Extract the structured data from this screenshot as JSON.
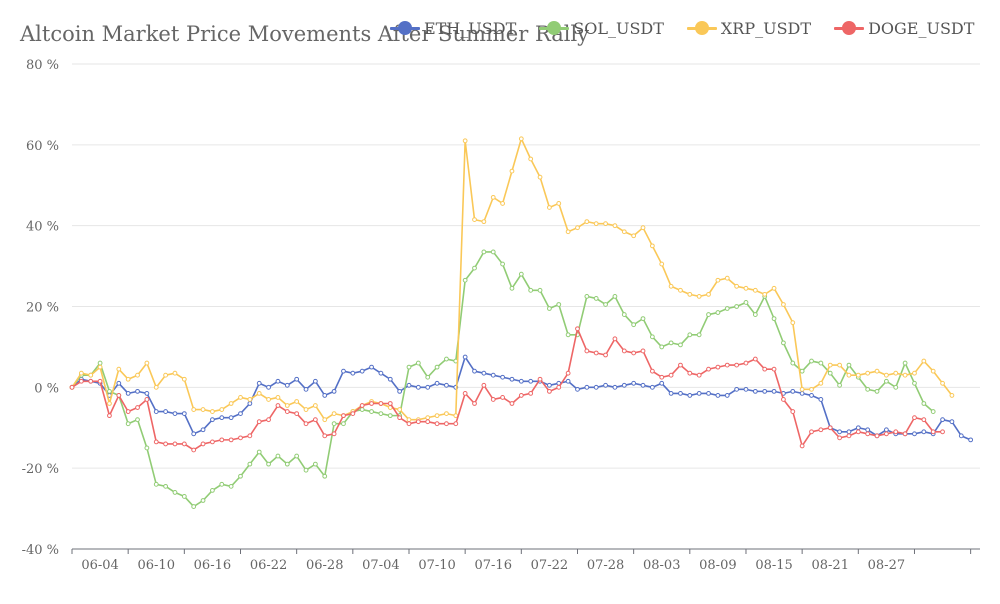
{
  "chart_data": {
    "type": "line",
    "title": "Altcoin Market Price Movements After Summer Rally",
    "xlabel": "",
    "ylabel": "",
    "ylim": [
      -40,
      80
    ],
    "y_ticks": [
      80,
      60,
      40,
      20,
      0,
      -20,
      -40
    ],
    "y_tick_suffix": " %",
    "x_tick_labels": [
      "06-04",
      "06-10",
      "06-16",
      "06-22",
      "06-28",
      "07-04",
      "07-10",
      "07-16",
      "07-22",
      "07-28",
      "08-03",
      "08-09",
      "08-15",
      "08-21",
      "08-27"
    ],
    "grid": true,
    "legend_position": "top",
    "series": [
      {
        "name": "ETH_USDT",
        "color": "#5470c6",
        "values": [
          0,
          2,
          1.5,
          1,
          -2,
          1,
          -1.5,
          -1,
          -1.5,
          -6,
          -6,
          -6.5,
          -6.5,
          -11.5,
          -10.5,
          -8,
          -7.5,
          -7.5,
          -6.5,
          -4,
          1,
          0,
          1.5,
          0.5,
          2,
          -0.5,
          1.5,
          -2,
          -1,
          4,
          3.5,
          4,
          5,
          3.5,
          2,
          -1,
          0.5,
          0,
          0,
          1,
          0.5,
          0,
          7.5,
          4,
          3.5,
          3,
          2.5,
          2,
          1.5,
          1.5,
          1.5,
          0.5,
          1,
          1.5,
          -0.5,
          0,
          0,
          0.5,
          0,
          0.5,
          1,
          0.5,
          0,
          1,
          -1.5,
          -1.5,
          -2,
          -1.5,
          -1.5,
          -2,
          -2,
          -0.5,
          -0.5,
          -1,
          -1,
          -1,
          -1.5,
          -1,
          -1.5,
          -2,
          -3,
          -10,
          -11,
          -11,
          -10,
          -10.5,
          -12,
          -10.5,
          -11.5,
          -11.5,
          -11.5,
          -11,
          -11.5,
          -8,
          -8.5,
          -12,
          -13
        ]
      },
      {
        "name": "SOL_USDT",
        "color": "#91cc75",
        "values": [
          0,
          3,
          3,
          6,
          -1,
          -2,
          -9,
          -8,
          -15,
          -24,
          -24.5,
          -26,
          -27,
          -29.5,
          -28,
          -25.5,
          -24,
          -24.5,
          -22,
          -19,
          -16,
          -19,
          -17,
          -19,
          -17,
          -20.5,
          -19,
          -22,
          -9,
          -9,
          -6,
          -5.5,
          -6,
          -6.5,
          -7,
          -7,
          5,
          6,
          2.5,
          5,
          7,
          6.5,
          26.5,
          29.5,
          33.5,
          33.5,
          30.5,
          24.5,
          28,
          24,
          24,
          19.5,
          20.5,
          13,
          13,
          22.5,
          22,
          20.5,
          22.5,
          18,
          15.5,
          17,
          12.5,
          10,
          11,
          10.5,
          13,
          13,
          18,
          18.5,
          19.5,
          20,
          21,
          18,
          22.5,
          17,
          11,
          6,
          4,
          6.5,
          6,
          3.5,
          0.5,
          5.5,
          2.5,
          -0.5,
          -1,
          1.5,
          0,
          6,
          1,
          -4,
          -6
        ]
      },
      {
        "name": "XRP_USDT",
        "color": "#fac858",
        "values": [
          0,
          3.5,
          3,
          5,
          -4,
          4.5,
          2,
          3,
          6,
          0,
          3,
          3.5,
          2,
          -5.5,
          -5.5,
          -6,
          -5.5,
          -4,
          -2.5,
          -3,
          -1.5,
          -3,
          -2.5,
          -4.5,
          -3.5,
          -5.5,
          -4.5,
          -8,
          -6.5,
          -7,
          -6,
          -4.5,
          -3.5,
          -4,
          -5,
          -5.5,
          -8,
          -8,
          -7.5,
          -7,
          -6.5,
          -7,
          61,
          41.5,
          41,
          47,
          45.5,
          53.5,
          61.5,
          56.5,
          52,
          44.5,
          45.5,
          38.5,
          39.5,
          41,
          40.5,
          40.5,
          40,
          38.5,
          37.5,
          39.5,
          35,
          30.5,
          25,
          24,
          23,
          22.5,
          23,
          26.5,
          27,
          25,
          24.5,
          24,
          23,
          24.5,
          20.5,
          16,
          -0.5,
          -0.5,
          1,
          5.5,
          5.5,
          3,
          3,
          3.5,
          4,
          3,
          3.5,
          3,
          3.5,
          6.5,
          4,
          1,
          -2
        ]
      },
      {
        "name": "DOGE_USDT",
        "color": "#ee6666",
        "values": [
          0,
          1.5,
          1.5,
          1.5,
          -7,
          -2,
          -6,
          -5,
          -3,
          -13.5,
          -14,
          -14,
          -14,
          -15.5,
          -14,
          -13.5,
          -13,
          -13,
          -12.5,
          -12,
          -8.5,
          -8,
          -4.5,
          -6,
          -6.5,
          -9,
          -8,
          -12,
          -11.5,
          -7,
          -6.5,
          -4.5,
          -4,
          -4,
          -4,
          -7.5,
          -9,
          -8.5,
          -8.5,
          -9,
          -9,
          -9,
          -1.5,
          -4,
          0.5,
          -3,
          -2.5,
          -4,
          -2,
          -1.5,
          2,
          -1,
          0,
          3.5,
          14.5,
          9,
          8.5,
          8,
          12,
          9,
          8.5,
          9,
          4,
          2.5,
          3,
          5.5,
          3.5,
          3,
          4.5,
          5,
          5.5,
          5.5,
          6,
          7,
          4.5,
          4.5,
          -3,
          -6,
          -14.5,
          -11,
          -10.5,
          -10,
          -12.5,
          -12,
          -11,
          -11.5,
          -12,
          -11.5,
          -11,
          -11.5,
          -7.5,
          -8,
          -11,
          -11
        ]
      }
    ]
  }
}
